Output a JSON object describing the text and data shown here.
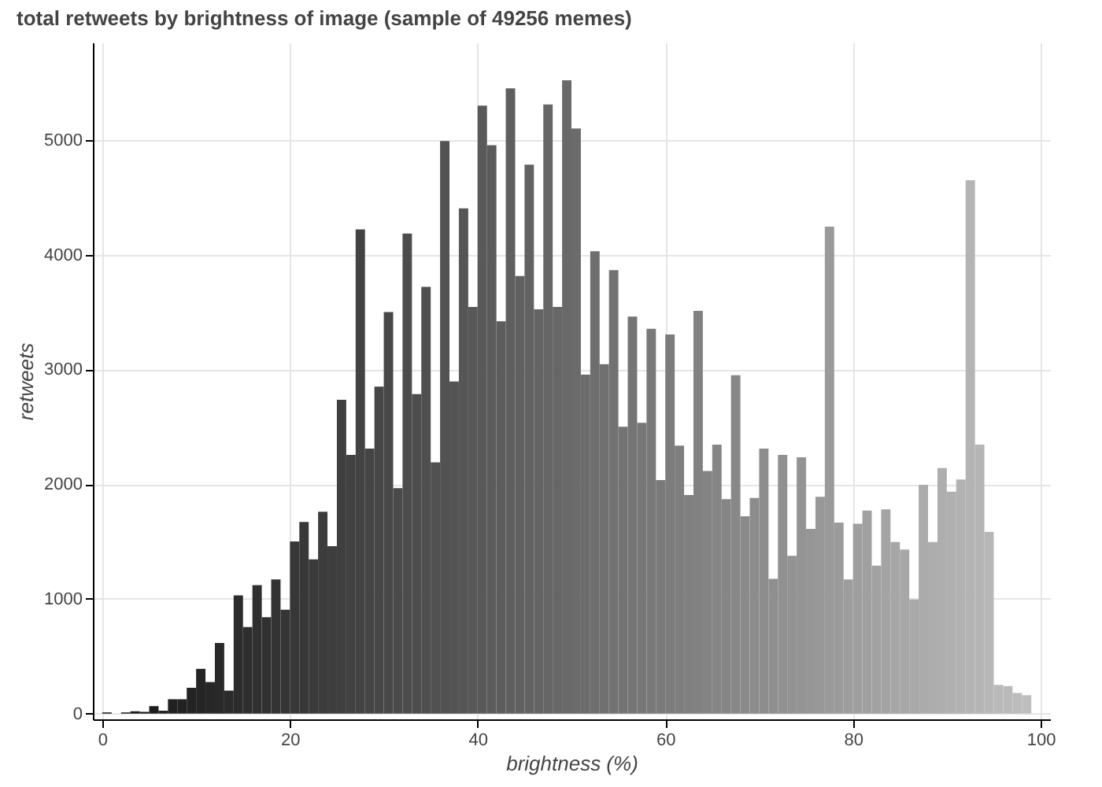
{
  "chart_data": {
    "type": "histogram",
    "title": "total retweets by brightness of image (sample of 49256 memes)",
    "xlabel": "brightness (%)",
    "ylabel": "retweets",
    "bins": [
      0,
      1,
      2,
      3,
      4,
      5,
      6,
      7,
      8,
      9,
      10,
      11,
      12,
      13,
      14,
      15,
      16,
      17,
      18,
      19,
      20,
      21,
      22,
      23,
      24,
      25,
      26,
      27,
      28,
      29,
      30,
      31,
      32,
      33,
      34,
      35,
      36,
      37,
      38,
      39,
      40,
      41,
      42,
      43,
      44,
      45,
      46,
      47,
      48,
      49,
      50,
      51,
      52,
      53,
      54,
      55,
      56,
      57,
      58,
      59,
      60,
      61,
      62,
      63,
      64,
      65,
      66,
      67,
      68,
      69,
      70,
      71,
      72,
      73,
      74,
      75,
      76,
      77,
      78,
      79,
      80,
      81,
      82,
      83,
      84,
      85,
      86,
      87,
      88,
      89,
      90,
      91,
      92,
      93,
      94,
      95,
      96,
      97,
      98,
      99
    ],
    "values": [
      10,
      0,
      10,
      20,
      15,
      65,
      25,
      125,
      125,
      225,
      390,
      275,
      615,
      200,
      1030,
      755,
      1120,
      840,
      1170,
      905,
      1500,
      1670,
      1345,
      1760,
      1460,
      2735,
      2255,
      4220,
      2310,
      2850,
      3500,
      1965,
      4185,
      2785,
      3720,
      2190,
      4990,
      2895,
      4405,
      3545,
      5300,
      4955,
      3420,
      5450,
      3815,
      4785,
      3525,
      5310,
      3545,
      5520,
      5100,
      2955,
      4030,
      3045,
      3865,
      2500,
      3460,
      2535,
      3355,
      2035,
      3305,
      2335,
      1905,
      3510,
      2115,
      2345,
      1870,
      2950,
      1720,
      1880,
      2310,
      1175,
      2255,
      1375,
      2235,
      1610,
      1890,
      4245,
      1665,
      1170,
      1655,
      1770,
      1290,
      1780,
      1495,
      1430,
      995,
      1995,
      1495,
      2140,
      1935,
      2040,
      4650,
      2345,
      1585,
      250,
      240,
      180,
      160
    ],
    "colors": [
      "#141414",
      "#161616",
      "#171717",
      "#191919",
      "#1b1b1b",
      "#1d1d1d",
      "#1e1e1e",
      "#202020",
      "#222222",
      "#242424",
      "#252525",
      "#272727",
      "#292929",
      "#2b2b2b",
      "#2c2c2c",
      "#2e2e2e",
      "#303030",
      "#313131",
      "#333333",
      "#353535",
      "#373737",
      "#383838",
      "#3a3a3a",
      "#3c3c3c",
      "#3e3e3e",
      "#3f3f3f",
      "#414141",
      "#434343",
      "#454545",
      "#464646",
      "#484848",
      "#4a4a4a",
      "#4c4c4c",
      "#4d4d4d",
      "#4f4f4f",
      "#515151",
      "#525252",
      "#545454",
      "#565656",
      "#585858",
      "#595959",
      "#5b5b5b",
      "#5d5d5d",
      "#5f5f5f",
      "#606060",
      "#626262",
      "#646464",
      "#666666",
      "#676767",
      "#696969",
      "#6b6b6b",
      "#6c6c6c",
      "#6e6e6e",
      "#707070",
      "#727272",
      "#737373",
      "#757575",
      "#777777",
      "#797979",
      "#7a7a7a",
      "#7c7c7c",
      "#7e7e7e",
      "#808080",
      "#818181",
      "#838383",
      "#858585",
      "#868686",
      "#888888",
      "#8a8a8a",
      "#8c8c8c",
      "#8d8d8d",
      "#8f8f8f",
      "#919191",
      "#939393",
      "#949494",
      "#969696",
      "#989898",
      "#9a9a9a",
      "#9b9b9b",
      "#9d9d9d",
      "#9f9f9f",
      "#a0a0a0",
      "#a2a2a2",
      "#a4a4a4",
      "#a6a6a6",
      "#a7a7a7",
      "#a9a9a9",
      "#ababab",
      "#adadad",
      "#aeaeae",
      "#b0b0b0",
      "#b2b2b2",
      "#b4b4b4",
      "#b5b5b5",
      "#b7b7b7",
      "#b9b9b9",
      "#bababa",
      "#bcbcbc",
      "#bebebe"
    ],
    "xlim": [
      -1,
      101
    ],
    "xticks": [
      0,
      20,
      40,
      60,
      80,
      100
    ],
    "ylim": [
      -50,
      5850
    ],
    "yticks": [
      0,
      1000,
      2000,
      3000,
      4000,
      5000
    ],
    "grid": true
  }
}
